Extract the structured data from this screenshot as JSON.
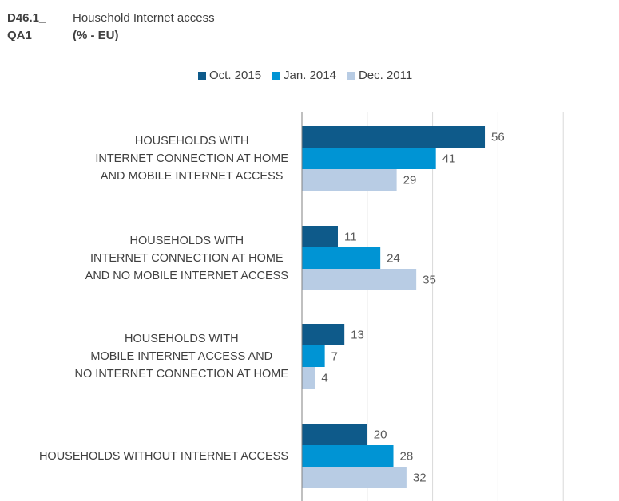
{
  "header": {
    "code_line1": "D46.1_",
    "title": "Household Internet access",
    "code_line2": "QA1",
    "subtitle": "(% - EU)"
  },
  "colors": {
    "oct2015": "#0e5a8a",
    "jan2014": "#0094d4",
    "dec2011": "#b8cce4",
    "grid": "#d9d9d9",
    "axis": "#808080"
  },
  "chart_data": {
    "type": "bar",
    "orientation": "horizontal",
    "title": "Household Internet access",
    "subtitle": "(% - EU)",
    "legend_position": "top",
    "grid": true,
    "xlim": [
      0,
      100
    ],
    "categories": [
      [
        "HOUSEHOLDS WITH",
        "INTERNET CONNECTION AT HOME",
        "AND MOBILE INTERNET ACCESS"
      ],
      [
        "HOUSEHOLDS WITH",
        "INTERNET CONNECTION AT HOME",
        "AND NO MOBILE INTERNET ACCESS"
      ],
      [
        "HOUSEHOLDS WITH",
        "MOBILE INTERNET ACCESS AND",
        "NO INTERNET CONNECTION AT HOME"
      ],
      [
        "HOUSEHOLDS WITHOUT INTERNET ACCESS"
      ]
    ],
    "series": [
      {
        "name": "Oct. 2015",
        "values": [
          56,
          11,
          13,
          20
        ]
      },
      {
        "name": "Jan. 2014",
        "values": [
          41,
          24,
          7,
          28
        ]
      },
      {
        "name": "Dec. 2011",
        "values": [
          29,
          35,
          4,
          32
        ]
      }
    ]
  }
}
